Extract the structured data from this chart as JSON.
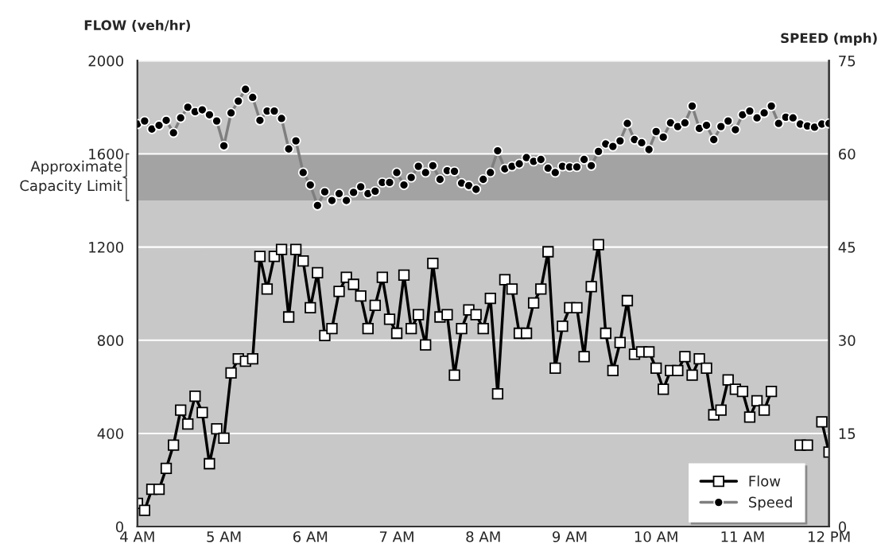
{
  "chart_data": {
    "type": "line",
    "xlabel": null,
    "ylabel": "FLOW (veh/hr)",
    "y2label": "SPEED (mph)",
    "x": [
      4,
      4.083,
      4.167,
      4.25,
      4.333,
      4.417,
      4.5,
      4.583,
      4.667,
      4.75,
      4.833,
      4.917,
      5,
      5.083,
      5.167,
      5.25,
      5.333,
      5.417,
      5.5,
      5.583,
      5.667,
      5.75,
      5.833,
      5.917,
      6,
      6.083,
      6.167,
      6.25,
      6.333,
      6.417,
      6.5,
      6.583,
      6.667,
      6.75,
      6.833,
      6.917,
      7,
      7.083,
      7.167,
      7.25,
      7.333,
      7.417,
      7.5,
      7.583,
      7.667,
      7.75,
      7.833,
      7.917,
      8,
      8.083,
      8.167,
      8.25,
      8.333,
      8.417,
      8.5,
      8.583,
      8.667,
      8.75,
      8.833,
      8.917,
      9,
      9.083,
      9.167,
      9.25,
      9.333,
      9.417,
      9.5,
      9.583,
      9.667,
      9.75,
      9.833,
      9.917,
      10,
      10.083,
      10.167,
      10.25,
      10.333,
      10.417,
      10.5,
      10.583,
      10.667,
      10.75,
      10.833,
      10.917,
      11,
      11.083,
      11.167,
      11.25,
      11.333,
      11.417,
      11.5,
      11.583,
      11.667,
      11.75,
      11.833,
      11.917,
      12
    ],
    "series": [
      {
        "name": "Flow",
        "color": "#000000",
        "marker": "square",
        "values": [
          100,
          70,
          160,
          160,
          250,
          350,
          500,
          440,
          560,
          490,
          270,
          420,
          380,
          660,
          720,
          710,
          720,
          1160,
          1020,
          1160,
          1190,
          900,
          1190,
          1140,
          940,
          1090,
          820,
          850,
          1010,
          1070,
          1040,
          990,
          850,
          950,
          1070,
          890,
          830,
          1080,
          850,
          910,
          780,
          1130,
          900,
          910,
          650,
          850,
          930,
          910,
          850,
          980,
          570,
          1060,
          1020,
          830,
          830,
          960,
          1020,
          1180,
          680,
          860,
          940,
          940,
          730,
          1030,
          1210,
          830,
          670,
          790,
          970,
          740,
          750,
          750,
          680,
          590,
          670,
          670,
          730,
          650,
          720,
          680,
          480,
          500,
          630,
          590,
          580,
          470,
          540,
          500,
          580,
          null,
          null,
          null,
          350,
          350,
          null,
          450,
          320
        ]
      },
      {
        "name": "Speed",
        "color": "#7f7f7f",
        "marker": "circle",
        "axis": "y2",
        "values": [
          64.8,
          65.3,
          64.0,
          64.6,
          65.4,
          63.4,
          65.8,
          67.5,
          66.8,
          67.1,
          66.3,
          65.3,
          61.3,
          66.6,
          68.5,
          70.4,
          69.1,
          65.4,
          66.9,
          66.9,
          65.7,
          60.8,
          62.1,
          57.0,
          55.0,
          51.7,
          53.9,
          52.5,
          53.6,
          52.5,
          53.8,
          54.7,
          53.6,
          54.0,
          55.4,
          55.4,
          57.0,
          55.0,
          56.2,
          58.0,
          57.0,
          58.1,
          55.9,
          57.3,
          57.2,
          55.3,
          54.9,
          54.3,
          55.9,
          57.0,
          60.5,
          57.6,
          58.0,
          58.4,
          59.4,
          58.8,
          59.1,
          57.7,
          57.0,
          58.0,
          57.9,
          57.9,
          59.1,
          58.1,
          60.4,
          61.6,
          61.2,
          62.1,
          64.9,
          62.3,
          61.8,
          60.7,
          63.6,
          62.7,
          65.0,
          64.4,
          65.0,
          67.7,
          64.1,
          64.6,
          62.3,
          64.4,
          65.3,
          63.9,
          66.3,
          66.9,
          65.8,
          66.6,
          67.7,
          64.9,
          65.9,
          65.8,
          64.8,
          64.5,
          64.3,
          64.8,
          64.9
        ]
      }
    ],
    "xlim": [
      4,
      12
    ],
    "xticks": [
      {
        "value": 4,
        "label": "4 AM"
      },
      {
        "value": 5,
        "label": "5 AM"
      },
      {
        "value": 6,
        "label": "6 AM"
      },
      {
        "value": 7,
        "label": "7 AM"
      },
      {
        "value": 8,
        "label": "8 AM"
      },
      {
        "value": 9,
        "label": "9 AM"
      },
      {
        "value": 10,
        "label": "10 AM"
      },
      {
        "value": 11,
        "label": "11 AM"
      },
      {
        "value": 12,
        "label": "12 PM"
      }
    ],
    "ylim": [
      0,
      2000
    ],
    "yticks": [
      0,
      400,
      800,
      1200,
      1600,
      2000
    ],
    "y2lim": [
      0,
      75
    ],
    "y2ticks": [
      0,
      15,
      30,
      45,
      60,
      75
    ],
    "bands": [
      {
        "axis": "y",
        "from": 1400,
        "to": 1600,
        "label": "Approximate\nCapacity Limit",
        "color": "#a3a3a3"
      }
    ],
    "grid": "y",
    "legend": "bottom right"
  }
}
